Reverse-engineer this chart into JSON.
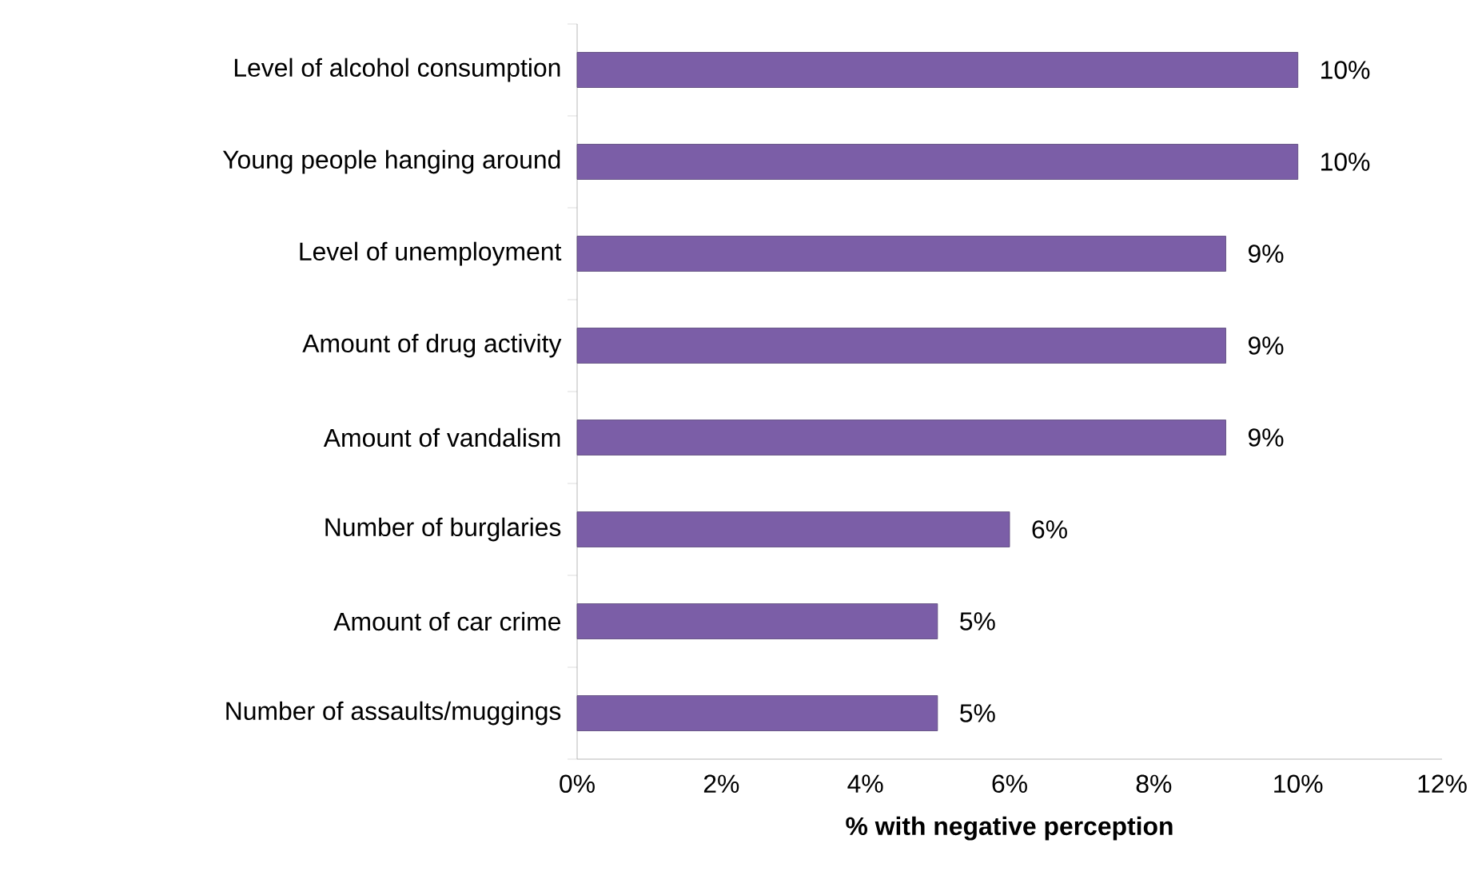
{
  "chart_data": {
    "type": "bar",
    "orientation": "horizontal",
    "xlabel": "**% with negative perception**",
    "categories": [
      "Level of alcohol consumption",
      "Young people hanging around",
      "Level of unemployment",
      "Amount of drug activity",
      "Amount of vandalism",
      "Number of burglaries",
      "Amount of car crime",
      "Number of assaults/muggings"
    ],
    "values": [
      10,
      10,
      9,
      9,
      9,
      6,
      5,
      5
    ],
    "value_labels": [
      "10%",
      "10%",
      "9%",
      "9%",
      "9%",
      "6%",
      "5%",
      "5%"
    ],
    "color": "#7b5ea7",
    "xlim": [
      0,
      12
    ],
    "xticks": [
      {
        "value": 0,
        "label": "0%"
      },
      {
        "value": 2,
        "label": "2%"
      },
      {
        "value": 4,
        "label": "4%"
      },
      {
        "value": 6,
        "label": "6%"
      },
      {
        "value": 8,
        "label": "8%"
      },
      {
        "value": 10,
        "label": "10%"
      },
      {
        "value": 12,
        "label": "12%"
      }
    ],
    "grid": false
  }
}
